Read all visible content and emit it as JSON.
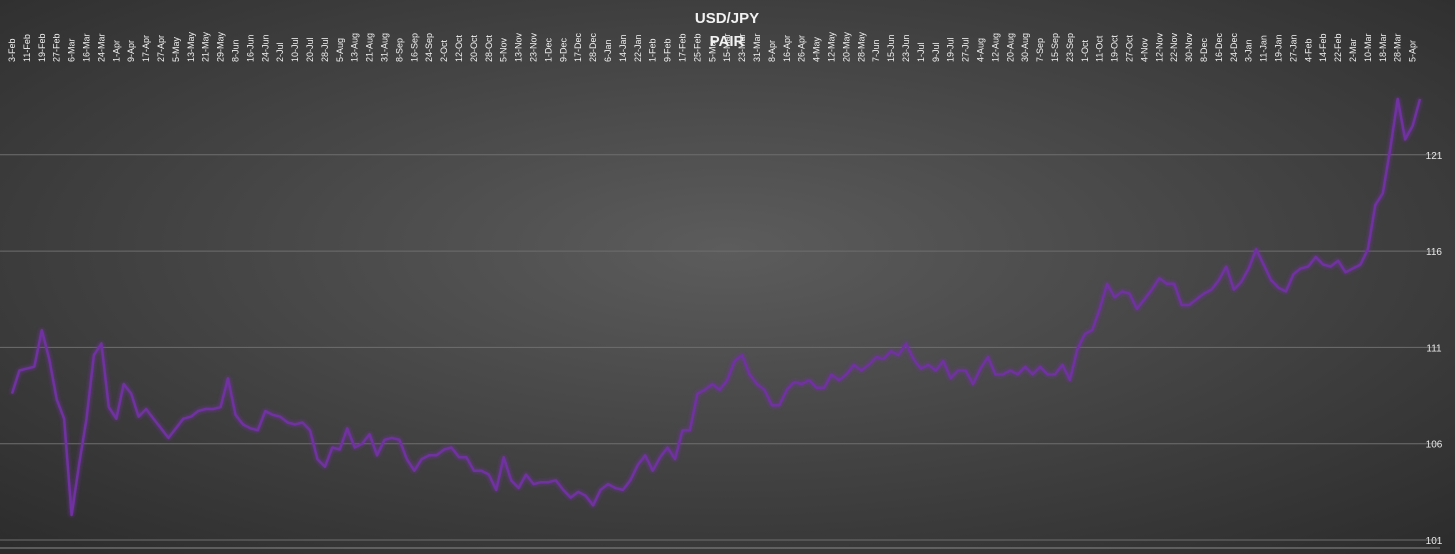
{
  "chart_data": {
    "type": "line",
    "title": "USD/JPY",
    "subtitle": "PAIR",
    "categories": [
      "3-Feb",
      null,
      "11-Feb",
      null,
      "19-Feb",
      null,
      "27-Feb",
      null,
      "6-Mar",
      null,
      "16-Mar",
      null,
      "24-Mar",
      null,
      "1-Apr",
      null,
      "9-Apr",
      null,
      "17-Apr",
      null,
      "27-Apr",
      null,
      "5-May",
      null,
      "13-May",
      null,
      "21-May",
      null,
      "29-May",
      null,
      "8-Jun",
      null,
      "16-Jun",
      null,
      "24-Jun",
      null,
      "2-Jul",
      null,
      "10-Jul",
      null,
      "20-Jul",
      null,
      "28-Jul",
      null,
      "5-Aug",
      null,
      "13-Aug",
      null,
      "21-Aug",
      null,
      "31-Aug",
      null,
      "8-Sep",
      null,
      "16-Sep",
      null,
      "24-Sep",
      null,
      "2-Oct",
      null,
      "12-Oct",
      null,
      "20-Oct",
      null,
      "28-Oct",
      null,
      "5-Nov",
      null,
      "13-Nov",
      null,
      "23-Nov",
      null,
      "1-Dec",
      null,
      "9-Dec",
      null,
      "17-Dec",
      null,
      "28-Dec",
      null,
      "6-Jan",
      null,
      "14-Jan",
      null,
      "22-Jan",
      null,
      "1-Feb",
      null,
      "9-Feb",
      null,
      "17-Feb",
      null,
      "25-Feb",
      null,
      "5-Mar",
      null,
      "15-Mar",
      null,
      "23-Mar",
      null,
      "31-Mar",
      null,
      "8-Apr",
      null,
      "16-Apr",
      null,
      "26-Apr",
      null,
      "4-May",
      null,
      "12-May",
      null,
      "20-May",
      null,
      "28-May",
      null,
      "7-Jun",
      null,
      "15-Jun",
      null,
      "23-Jun",
      null,
      "1-Jul",
      null,
      "9-Jul",
      null,
      "19-Jul",
      null,
      "27-Jul",
      null,
      "4-Aug",
      null,
      "12-Aug",
      null,
      "20-Aug",
      null,
      "30-Aug",
      null,
      "7-Sep",
      null,
      "15-Sep",
      null,
      "23-Sep",
      null,
      "1-Oct",
      null,
      "11-Oct",
      null,
      "19-Oct",
      null,
      "27-Oct",
      null,
      "4-Nov",
      null,
      "12-Nov",
      null,
      "22-Nov",
      null,
      "30-Nov",
      null,
      "8-Dec",
      null,
      "16-Dec",
      null,
      "24-Dec",
      null,
      "3-Jan",
      null,
      "11-Jan",
      null,
      "19-Jan",
      null,
      "27-Jan",
      null,
      "4-Feb",
      null,
      "14-Feb",
      null,
      "22-Feb",
      null,
      "2-Mar",
      null,
      "10-Mar",
      null,
      "18-Mar",
      null,
      "28-Mar",
      null,
      "5-Apr",
      null
    ],
    "series": [
      {
        "name": "USD/JPY",
        "color": "#7030a0",
        "values": [
          108.6,
          109.8,
          109.9,
          110.0,
          111.9,
          110.4,
          108.3,
          107.3,
          102.3,
          104.9,
          107.3,
          110.6,
          111.2,
          107.9,
          107.3,
          109.1,
          108.6,
          107.4,
          107.8,
          107.3,
          106.8,
          106.3,
          106.8,
          107.3,
          107.4,
          107.7,
          107.8,
          107.8,
          107.9,
          109.4,
          107.5,
          107.0,
          106.8,
          106.7,
          107.7,
          107.5,
          107.4,
          107.1,
          107.0,
          107.1,
          106.7,
          105.2,
          104.8,
          105.8,
          105.7,
          106.8,
          105.8,
          106.0,
          106.5,
          105.4,
          106.2,
          106.3,
          106.2,
          105.2,
          104.6,
          105.2,
          105.4,
          105.4,
          105.7,
          105.8,
          105.3,
          105.3,
          104.6,
          104.6,
          104.4,
          103.6,
          105.3,
          104.1,
          103.7,
          104.4,
          103.9,
          104.0,
          104.0,
          104.1,
          103.6,
          103.2,
          103.5,
          103.3,
          102.8,
          103.6,
          103.9,
          103.7,
          103.6,
          104.1,
          104.9,
          105.4,
          104.6,
          105.3,
          105.8,
          105.2,
          106.7,
          106.7,
          108.6,
          108.8,
          109.1,
          108.8,
          109.3,
          110.3,
          110.6,
          109.6,
          109.1,
          108.8,
          108.0,
          108.0,
          108.8,
          109.2,
          109.1,
          109.3,
          108.9,
          108.9,
          109.6,
          109.3,
          109.6,
          110.1,
          109.8,
          110.1,
          110.5,
          110.4,
          110.8,
          110.6,
          111.2,
          110.4,
          109.9,
          110.1,
          109.8,
          110.3,
          109.4,
          109.8,
          109.8,
          109.1,
          109.9,
          110.5,
          109.6,
          109.6,
          109.8,
          109.6,
          110.0,
          109.6,
          110.0,
          109.6,
          109.6,
          110.1,
          109.3,
          110.9,
          111.7,
          111.9,
          113.0,
          114.3,
          113.6,
          113.9,
          113.8,
          113.0,
          113.5,
          114.0,
          114.6,
          114.3,
          114.3,
          113.2,
          113.2,
          113.5,
          113.8,
          114.0,
          114.5,
          115.2,
          114.0,
          114.4,
          115.1,
          116.1,
          115.3,
          114.5,
          114.1,
          113.9,
          114.8,
          115.1,
          115.2,
          115.7,
          115.3,
          115.2,
          115.5,
          114.9,
          115.1,
          115.3,
          116.1,
          118.4,
          119.0,
          121.3,
          123.9,
          121.8,
          122.5,
          123.9
        ]
      }
    ],
    "ylim": [
      101,
      124
    ],
    "yticks": [
      101,
      106,
      111,
      116,
      121
    ],
    "grid": true
  }
}
